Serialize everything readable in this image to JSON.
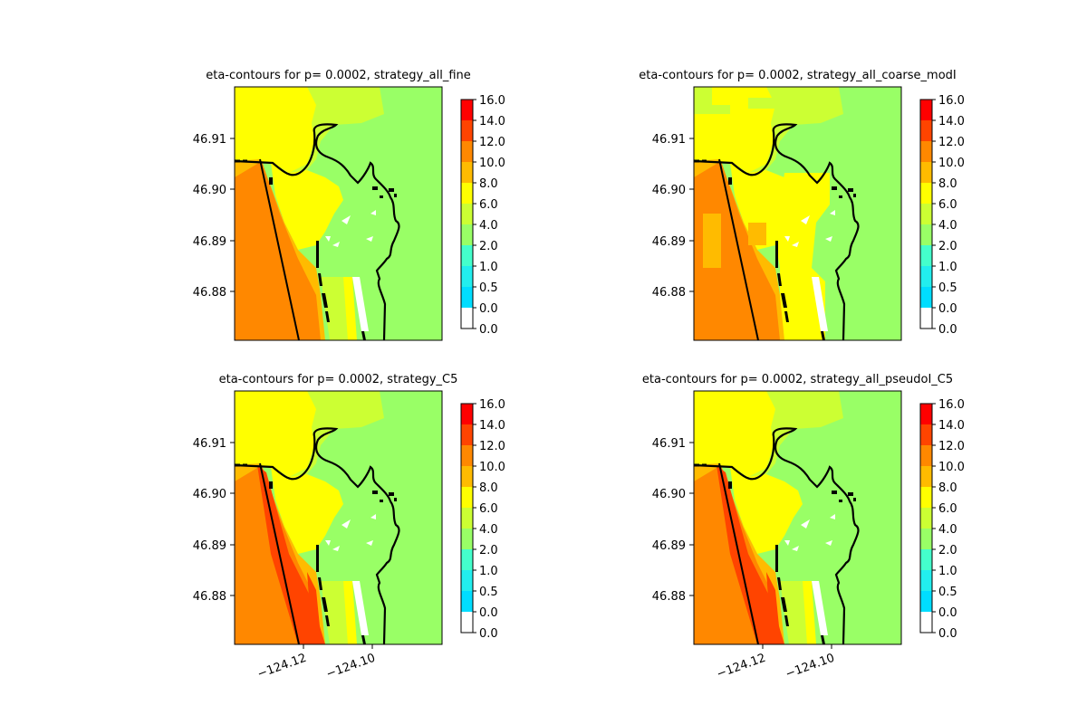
{
  "figure": {
    "colors": {
      "land": "#9bff5a",
      "coast": "#000000",
      "background": "#ffffff"
    }
  },
  "colorbar": {
    "labels": [
      "16.0",
      "14.0",
      "12.0",
      "10.0",
      "8.0",
      "6.0",
      "4.0",
      "2.0",
      "1.0",
      "0.5",
      "0.0",
      "0.0"
    ],
    "bands": [
      {
        "range": "14.0-16.0",
        "color": "#ff0000"
      },
      {
        "range": "12.0-14.0",
        "color": "#ff4400"
      },
      {
        "range": "10.0-12.0",
        "color": "#ff8800"
      },
      {
        "range": "8.0-10.0",
        "color": "#ffbb00"
      },
      {
        "range": "6.0-8.0",
        "color": "#ffff00"
      },
      {
        "range": "4.0-6.0",
        "color": "#ccff33"
      },
      {
        "range": "2.0-4.0",
        "color": "#99ff66"
      },
      {
        "range": "1.0-2.0",
        "color": "#44ffcc"
      },
      {
        "range": "0.5-1.0",
        "color": "#22eeee"
      },
      {
        "range": "0.0-0.5",
        "color": "#00ddff"
      },
      {
        "range": "0.0-0.0",
        "color": "#ffffff"
      }
    ]
  },
  "panels": [
    {
      "title": "eta-contours for p= 0.0002, strategy_all_fine",
      "variant": "fine"
    },
    {
      "title": "eta-contours for p= 0.0002, strategy_all_coarse_modI",
      "variant": "coarse"
    },
    {
      "title": "eta-contours for p= 0.0002, strategy_C5",
      "variant": "c5"
    },
    {
      "title": "eta-contours for p= 0.0002, strategy_all_pseudoI_C5",
      "variant": "pseudo"
    }
  ],
  "yticks": [
    "46.91",
    "46.90",
    "46.89",
    "46.88"
  ],
  "xticks": [
    "−124.12",
    "−124.10"
  ]
}
